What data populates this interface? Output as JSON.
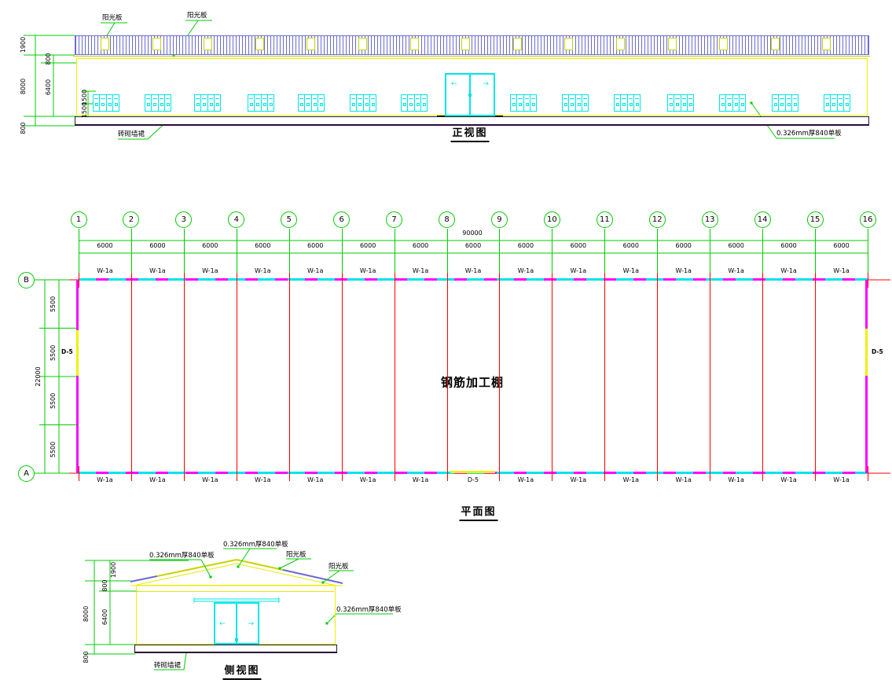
{
  "front_view": {
    "title": "正视图",
    "labels": {
      "sun_panel_1": "阳光板",
      "sun_panel_2": "阳光板",
      "wall_skirt": "砖砌墙裙",
      "steel_sheet": "0.326mm厚840单板"
    },
    "dimensions": {
      "roof_height": "1900",
      "eave_band": "800",
      "total_height": "8000",
      "wall_height": "6400",
      "window_height": "1500",
      "sill_height": "1500",
      "skirt_height": "800"
    },
    "window_group_count": 14,
    "skylight_count": 15
  },
  "plan_view": {
    "title": "平面图",
    "room_label": "钢筋加工棚",
    "grid_numbers": [
      "1",
      "2",
      "3",
      "4",
      "5",
      "6",
      "7",
      "8",
      "9",
      "10",
      "11",
      "12",
      "13",
      "14",
      "15",
      "16"
    ],
    "row_letters": {
      "top": "B",
      "bottom": "A"
    },
    "dimensions": {
      "total_width": "90000",
      "bay_width": "6000",
      "total_depth": "22000",
      "depth_segment": "5500",
      "depth_segment_count": 4
    },
    "wall_panel_label": "W-1a",
    "door_label": "D-5"
  },
  "side_view": {
    "title": "侧视图",
    "labels": {
      "sheet_top": "0.326mm厚840单板",
      "sheet_left": "0.326mm厚840单板",
      "sheet_right": "0.326mm厚840单板",
      "sun_panel_1": "阳光板",
      "sun_panel_2": "阳光板",
      "wall_skirt": "砖砌墙裙"
    },
    "dimensions": {
      "roof_height": "1900",
      "eave_band": "800",
      "total_height": "8000",
      "wall_height": "6400",
      "skirt_height": "800"
    }
  },
  "glyphs": {
    "arrow_left": "←",
    "arrow_right": "→"
  },
  "colors": {
    "dimension_green": "#00cc00",
    "axis_red": "#ff0000",
    "wall_magenta": "#ff00ff",
    "fixture_cyan": "#00e5e5",
    "line_yellow": "#f0f000",
    "skylight_yellow_green": "#c8d400",
    "roof_blue": "#6b6bd4",
    "base_dark_purple": "#2e0a38"
  }
}
